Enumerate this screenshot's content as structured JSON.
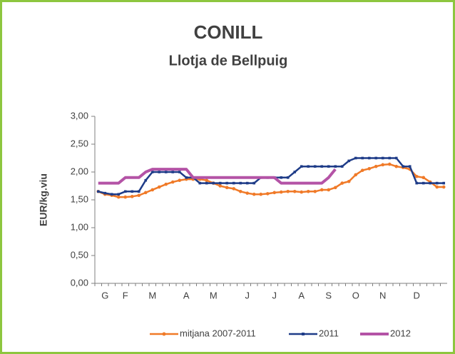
{
  "chart_data": {
    "type": "line",
    "title": "CONILL",
    "subtitle": "Llotja de Bellpuig",
    "y_label": "EUR/kg.viu",
    "categories": [
      null,
      "G",
      null,
      null,
      "F",
      null,
      null,
      null,
      "M",
      null,
      null,
      null,
      null,
      "A",
      null,
      null,
      null,
      "M",
      null,
      null,
      null,
      null,
      "J",
      null,
      null,
      null,
      "J",
      null,
      null,
      null,
      "A",
      null,
      null,
      null,
      "S",
      null,
      null,
      null,
      "O",
      null,
      null,
      null,
      "N",
      null,
      null,
      null,
      null,
      "D",
      null,
      null,
      null,
      null
    ],
    "series": [
      {
        "name": "mitjana 2007-2011",
        "color": "#f07a28",
        "marker": "circle",
        "values": [
          1.65,
          1.6,
          1.58,
          1.55,
          1.55,
          1.56,
          1.58,
          1.63,
          1.68,
          1.73,
          1.78,
          1.82,
          1.85,
          1.87,
          1.87,
          1.87,
          1.85,
          1.8,
          1.75,
          1.72,
          1.7,
          1.65,
          1.62,
          1.6,
          1.6,
          1.61,
          1.63,
          1.64,
          1.65,
          1.65,
          1.64,
          1.65,
          1.65,
          1.68,
          1.68,
          1.72,
          1.8,
          1.83,
          1.95,
          2.03,
          2.06,
          2.1,
          2.13,
          2.14,
          2.1,
          2.08,
          2.05,
          1.92,
          1.9,
          1.82,
          1.73,
          1.73
        ]
      },
      {
        "name": "2011",
        "color": "#1f3c88",
        "marker": "square",
        "values": [
          1.65,
          1.62,
          1.6,
          1.6,
          1.65,
          1.65,
          1.65,
          1.85,
          2.0,
          2.0,
          2.0,
          2.0,
          2.0,
          1.9,
          1.9,
          1.8,
          1.8,
          1.8,
          1.8,
          1.8,
          1.8,
          1.8,
          1.8,
          1.8,
          1.9,
          1.9,
          1.9,
          1.9,
          1.9,
          2.0,
          2.1,
          2.1,
          2.1,
          2.1,
          2.1,
          2.1,
          2.1,
          2.2,
          2.25,
          2.25,
          2.25,
          2.25,
          2.25,
          2.25,
          2.25,
          2.1,
          2.1,
          1.8,
          1.8,
          1.8,
          1.8,
          1.8
        ]
      },
      {
        "name": "2012",
        "color": "#b453a6",
        "marker": "none",
        "values": [
          1.8,
          1.8,
          1.8,
          1.8,
          1.9,
          1.9,
          1.9,
          2.0,
          2.05,
          2.05,
          2.05,
          2.05,
          2.05,
          2.05,
          1.9,
          1.9,
          1.9,
          1.9,
          1.9,
          1.9,
          1.9,
          1.9,
          1.9,
          1.9,
          1.9,
          1.9,
          1.9,
          1.8,
          1.8,
          1.8,
          1.8,
          1.8,
          1.8,
          1.8,
          1.9,
          2.05,
          null,
          null,
          null,
          null,
          null,
          null,
          null,
          null,
          null,
          null,
          null,
          null,
          null,
          null,
          null,
          null
        ]
      }
    ],
    "ylim": [
      0,
      3
    ],
    "yticks": [
      {
        "value": 0,
        "label": "0,00"
      },
      {
        "value": 0.5,
        "label": "0,50"
      },
      {
        "value": 1,
        "label": "1,00"
      },
      {
        "value": 1.5,
        "label": "1,50"
      },
      {
        "value": 2,
        "label": "2,00"
      },
      {
        "value": 2.5,
        "label": "2,50"
      },
      {
        "value": 3,
        "label": "3,00"
      }
    ],
    "grid": false,
    "legend": "bottom"
  }
}
